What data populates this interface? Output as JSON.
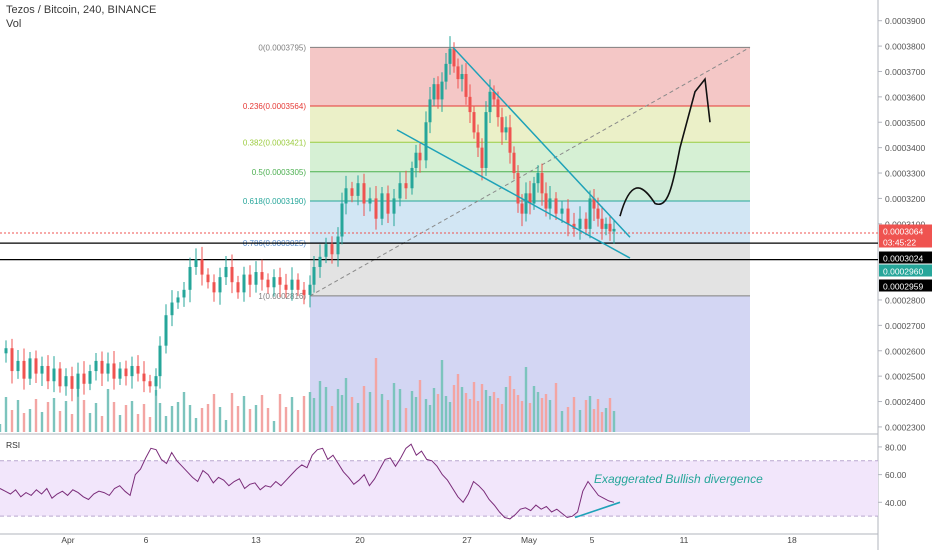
{
  "header": {
    "symbol": "Tezos / Bitcoin, 240, BINANCE",
    "vol_label": "Vol"
  },
  "chart_data": {
    "type": "candlestick",
    "price_axis": {
      "min": 0.000228,
      "max": 0.000395,
      "ticks": [
        "0.0003900",
        "0.0003800",
        "0.0003700",
        "0.0003600",
        "0.0003500",
        "0.0003400",
        "0.0003300",
        "0.0003200",
        "0.0003100",
        "0.0002800",
        "0.0002700",
        "0.0002600",
        "0.0002500",
        "0.0002400",
        "0.0002300"
      ]
    },
    "price_markers": [
      {
        "label": "0.0003064",
        "color": "#ef5350"
      },
      {
        "label": "03:45:22",
        "color": "#ef5350"
      },
      {
        "label": "0.0003024",
        "color": "#000000"
      },
      {
        "label": "0.0002960",
        "color": "#26a69a"
      },
      {
        "label": "0.0002959",
        "color": "#000000"
      }
    ],
    "time_axis": {
      "labels": [
        "Apr",
        "6",
        "13",
        "20",
        "27",
        "May",
        "5",
        "11",
        "18"
      ]
    },
    "fibonacci": {
      "levels": [
        {
          "ratio": "0",
          "label": "0(0.0003795)",
          "price": 0.0003795,
          "color": "#808080",
          "fill": "#f4c7c6"
        },
        {
          "ratio": "0.236",
          "label": "0.236(0.0003564)",
          "price": 0.0003564,
          "color": "#e53935",
          "fill": "#ebf0c8"
        },
        {
          "ratio": "0.382",
          "label": "0.382(0.0003421)",
          "price": 0.0003421,
          "color": "#9ccc40",
          "fill": "#d6f0d4"
        },
        {
          "ratio": "0.5",
          "label": "0.5(0.0003305)",
          "price": 0.0003305,
          "color": "#4caf50",
          "fill": "#d1ecd8"
        },
        {
          "ratio": "0.618",
          "label": "0.618(0.0003190)",
          "price": 0.000319,
          "color": "#26a69a",
          "fill": "#d2e6f4"
        },
        {
          "ratio": "0.786",
          "label": "0.786(0.0003025)",
          "price": 0.0003025,
          "color": "#5a8fd0",
          "fill": "#e3e3e3"
        },
        {
          "ratio": "1",
          "label": "1(0.0002816)",
          "price": 0.0002816,
          "color": "#808080",
          "fill": ""
        }
      ]
    },
    "key_levels": [
      0.0003064,
      0.0003024,
      0.0002959
    ],
    "series": [
      {
        "name": "price",
        "points": [
          [
            0,
            0.000259
          ],
          [
            6,
            0.000261
          ],
          [
            12,
            0.000252
          ],
          [
            18,
            0.000256
          ],
          [
            24,
            0.000249
          ],
          [
            30,
            0.000257
          ],
          [
            36,
            0.000251
          ],
          [
            42,
            0.000254
          ],
          [
            48,
            0.000248
          ],
          [
            54,
            0.000253
          ],
          [
            60,
            0.000246
          ],
          [
            66,
            0.00025
          ],
          [
            72,
            0.000245
          ],
          [
            78,
            0.000251
          ],
          [
            84,
            0.000247
          ],
          [
            90,
            0.000252
          ],
          [
            96,
            0.000256
          ],
          [
            102,
            0.000251
          ],
          [
            108,
            0.000255
          ],
          [
            114,
            0.000249
          ],
          [
            120,
            0.000253
          ],
          [
            126,
            0.00025
          ],
          [
            132,
            0.000254
          ],
          [
            138,
            0.000251
          ],
          [
            144,
            0.000248
          ],
          [
            150,
            0.000246
          ],
          [
            156,
            0.00025
          ],
          [
            160,
            0.000262
          ],
          [
            166,
            0.000274
          ],
          [
            172,
            0.000279
          ],
          [
            178,
            0.000281
          ],
          [
            184,
            0.000284
          ],
          [
            190,
            0.000293
          ],
          [
            196,
            0.000296
          ],
          [
            202,
            0.00029
          ],
          [
            208,
            0.000287
          ],
          [
            214,
            0.000283
          ],
          [
            220,
            0.000289
          ],
          [
            226,
            0.000293
          ],
          [
            232,
            0.000287
          ],
          [
            238,
            0.000283
          ],
          [
            244,
            0.00029
          ],
          [
            250,
            0.000286
          ],
          [
            256,
            0.000291
          ],
          [
            262,
            0.000288
          ],
          [
            268,
            0.000285
          ],
          [
            274,
            0.000289
          ],
          [
            280,
            0.000286
          ],
          [
            286,
            0.000284
          ],
          [
            292,
            0.000288
          ],
          [
            298,
            0.000284
          ],
          [
            304,
            0.000282
          ],
          [
            310,
            0.000286
          ],
          [
            314,
            0.000293
          ],
          [
            320,
            0.000297
          ],
          [
            326,
            0.000302
          ],
          [
            332,
            0.000298
          ],
          [
            338,
            0.000305
          ],
          [
            342,
            0.000318
          ],
          [
            346,
            0.000324
          ],
          [
            352,
            0.000321
          ],
          [
            358,
            0.000326
          ],
          [
            364,
            0.000318
          ],
          [
            370,
            0.00032
          ],
          [
            376,
            0.000312
          ],
          [
            382,
            0.000322
          ],
          [
            388,
            0.000314
          ],
          [
            394,
            0.00032
          ],
          [
            400,
            0.000326
          ],
          [
            406,
            0.000324
          ],
          [
            412,
            0.000332
          ],
          [
            416,
            0.000338
          ],
          [
            420,
            0.000335
          ],
          [
            426,
            0.00035
          ],
          [
            430,
            0.000359
          ],
          [
            434,
            0.000365
          ],
          [
            438,
            0.000359
          ],
          [
            442,
            0.000366
          ],
          [
            446,
            0.000373
          ],
          [
            450,
            0.000379
          ],
          [
            454,
            0.000372
          ],
          [
            458,
            0.000367
          ],
          [
            462,
            0.000369
          ],
          [
            466,
            0.00036
          ],
          [
            470,
            0.000354
          ],
          [
            474,
            0.000346
          ],
          [
            478,
            0.00034
          ],
          [
            482,
            0.000332
          ],
          [
            486,
            0.000354
          ],
          [
            490,
            0.000362
          ],
          [
            494,
            0.000359
          ],
          [
            498,
            0.000352
          ],
          [
            502,
            0.000346
          ],
          [
            506,
            0.000348
          ],
          [
            510,
            0.000338
          ],
          [
            514,
            0.00033
          ],
          [
            518,
            0.000318
          ],
          [
            522,
            0.000314
          ],
          [
            526,
            0.000322
          ],
          [
            530,
            0.000318
          ],
          [
            534,
            0.000326
          ],
          [
            538,
            0.00033
          ],
          [
            542,
            0.000322
          ],
          [
            546,
            0.000316
          ],
          [
            550,
            0.00032
          ],
          [
            556,
            0.000314
          ],
          [
            562,
            0.000316
          ],
          [
            568,
            0.00031
          ],
          [
            574,
            0.000308
          ],
          [
            580,
            0.000312
          ],
          [
            586,
            0.000308
          ],
          [
            590,
            0.00032
          ],
          [
            594,
            0.000316
          ],
          [
            598,
            0.000312
          ],
          [
            602,
            0.000308
          ],
          [
            606,
            0.00031
          ],
          [
            610,
            0.000307
          ],
          [
            614,
            0.000308
          ]
        ]
      }
    ],
    "projection_path": [
      [
        620,
        0.000313
      ],
      [
        640,
        0.000322
      ],
      [
        655,
        0.000318
      ],
      [
        665,
        0.000322
      ],
      [
        680,
        0.00034
      ],
      [
        695,
        0.000362
      ],
      [
        705,
        0.000366
      ],
      [
        710,
        0.00035
      ]
    ],
    "rsi": {
      "label": "RSI",
      "ticks": [
        "80.00",
        "60.00",
        "40.00"
      ],
      "band": [
        30,
        70
      ],
      "values": [
        50,
        48,
        46,
        49,
        44,
        47,
        45,
        49,
        46,
        50,
        43,
        46,
        48,
        45,
        49,
        47,
        44,
        42,
        46,
        48,
        47,
        45,
        50,
        52,
        48,
        45,
        60,
        64,
        72,
        79,
        78,
        71,
        68,
        76,
        70,
        66,
        62,
        58,
        55,
        63,
        60,
        54,
        58,
        56,
        52,
        55,
        57,
        50,
        53,
        54,
        49,
        52,
        51,
        55,
        52,
        56,
        60,
        64,
        67,
        65,
        74,
        78,
        79,
        71,
        74,
        68,
        62,
        58,
        53,
        56,
        60,
        52,
        57,
        64,
        71,
        72,
        66,
        72,
        79,
        82,
        74,
        77,
        71,
        70,
        66,
        60,
        56,
        50,
        44,
        40,
        46,
        55,
        52,
        48,
        42,
        38,
        33,
        29,
        28,
        31,
        35,
        36,
        34,
        38,
        35,
        37,
        33,
        35,
        32,
        29,
        30,
        33,
        48,
        55,
        50,
        45,
        43,
        41,
        40
      ],
      "divergence_label": "Exaggerated Bullish divergence"
    }
  }
}
